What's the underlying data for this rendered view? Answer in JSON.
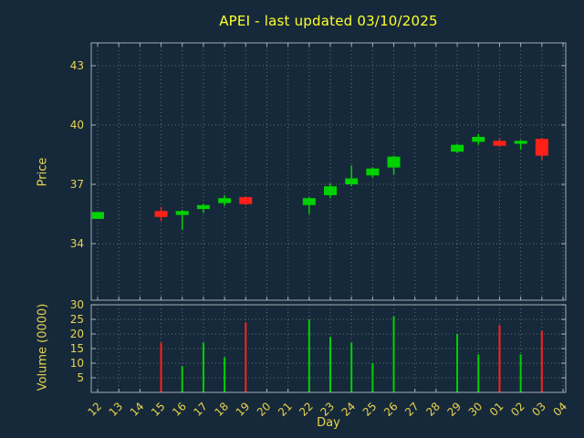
{
  "chart_data": {
    "type": "candlestick",
    "title": "APEI - last updated 03/10/2025",
    "xlabel": "Day",
    "price_ylabel": "Price",
    "volume_ylabel": "Volume (0000)",
    "x_categories": [
      "12",
      "13",
      "14",
      "15",
      "16",
      "17",
      "18",
      "19",
      "20",
      "21",
      "22",
      "23",
      "24",
      "25",
      "26",
      "27",
      "28",
      "29",
      "30",
      "01",
      "02",
      "03",
      "04"
    ],
    "price_ticks": [
      43,
      40,
      37,
      34
    ],
    "volume_ticks": [
      30,
      25,
      20,
      15,
      10,
      5
    ],
    "legend_position": "none",
    "grid": "dotted",
    "candles": [
      {
        "day": "12",
        "open": 35.25,
        "close": 35.6,
        "low": 35.25,
        "high": 35.6,
        "volume": 0
      },
      {
        "day": "15",
        "open": 35.65,
        "close": 35.35,
        "low": 35.15,
        "high": 35.85,
        "volume": 17
      },
      {
        "day": "16",
        "open": 35.45,
        "close": 35.65,
        "low": 34.7,
        "high": 35.7,
        "volume": 9
      },
      {
        "day": "17",
        "open": 35.75,
        "close": 35.95,
        "low": 35.55,
        "high": 36.0,
        "volume": 17
      },
      {
        "day": "18",
        "open": 36.05,
        "close": 36.3,
        "low": 35.9,
        "high": 36.45,
        "volume": 12
      },
      {
        "day": "19",
        "open": 36.35,
        "close": 36.0,
        "low": 35.95,
        "high": 36.4,
        "volume": 24
      },
      {
        "day": "22",
        "open": 35.95,
        "close": 36.3,
        "low": 35.5,
        "high": 36.35,
        "volume": 25
      },
      {
        "day": "23",
        "open": 36.45,
        "close": 36.9,
        "low": 36.3,
        "high": 37.05,
        "volume": 19
      },
      {
        "day": "24",
        "open": 37.0,
        "close": 37.3,
        "low": 36.9,
        "high": 37.95,
        "volume": 17
      },
      {
        "day": "25",
        "open": 37.45,
        "close": 37.8,
        "low": 37.35,
        "high": 37.85,
        "volume": 10
      },
      {
        "day": "26",
        "open": 37.85,
        "close": 38.4,
        "low": 37.5,
        "high": 38.45,
        "volume": 26
      },
      {
        "day": "29",
        "open": 38.65,
        "close": 39.0,
        "low": 38.6,
        "high": 39.05,
        "volume": 20
      },
      {
        "day": "30",
        "open": 39.15,
        "close": 39.4,
        "low": 39.0,
        "high": 39.55,
        "volume": 13
      },
      {
        "day": "01",
        "open": 39.2,
        "close": 38.95,
        "low": 38.9,
        "high": 39.3,
        "volume": 23
      },
      {
        "day": "02",
        "open": 39.05,
        "close": 39.2,
        "low": 38.75,
        "high": 39.25,
        "volume": 13
      },
      {
        "day": "03",
        "open": 39.3,
        "close": 38.45,
        "low": 38.25,
        "high": 39.35,
        "volume": 21
      }
    ],
    "colors": {
      "background": "#16293a",
      "title": "#ffff2b",
      "label": "#e8d44e",
      "grid": "#b7c3cc",
      "border": "#c3ccd4",
      "up": "#00d100",
      "down": "#ff2117"
    }
  }
}
